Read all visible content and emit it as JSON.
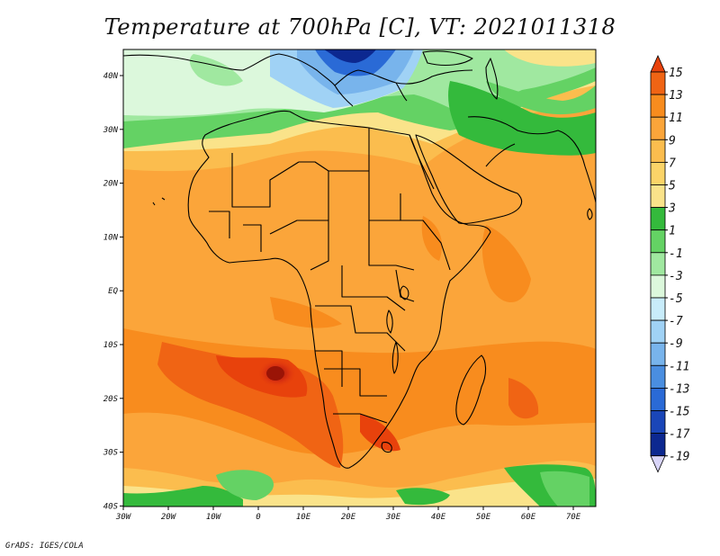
{
  "title": "Temperature at 700hPa [C], VT: 2021011318",
  "credit": "GrADS: IGES/COLA",
  "map": {
    "lon_range": [
      -30,
      75
    ],
    "lat_range": [
      -40,
      45
    ],
    "x_ticks": [
      "30W",
      "20W",
      "10W",
      "0",
      "10E",
      "20E",
      "30E",
      "40E",
      "50E",
      "60E",
      "70E"
    ],
    "y_ticks": [
      "40N",
      "30N",
      "20N",
      "10N",
      "EQ",
      "10S",
      "20S",
      "30S",
      "40S"
    ],
    "variable": "Temperature",
    "level": "700hPa",
    "units": "C",
    "valid_time": "2021011318"
  },
  "colorbar": {
    "labels": [
      "15",
      "13",
      "11",
      "9",
      "7",
      "5",
      "3",
      "1",
      "-1",
      "-3",
      "-5",
      "-7",
      "-9",
      "-11",
      "-13",
      "-15",
      "-17",
      "-19"
    ],
    "colors": [
      "#e8420c",
      "#f06414",
      "#f88c1e",
      "#fba53a",
      "#fbbd4e",
      "#fbd468",
      "#fae38a",
      "#34ba3c",
      "#64d264",
      "#a0e8a0",
      "#dcf8dc",
      "#c8ecfa",
      "#a0d2f5",
      "#78b4ec",
      "#4a8ee0",
      "#2a6ad6",
      "#1a46b8",
      "#0c2890",
      "#0a0a60"
    ]
  }
}
